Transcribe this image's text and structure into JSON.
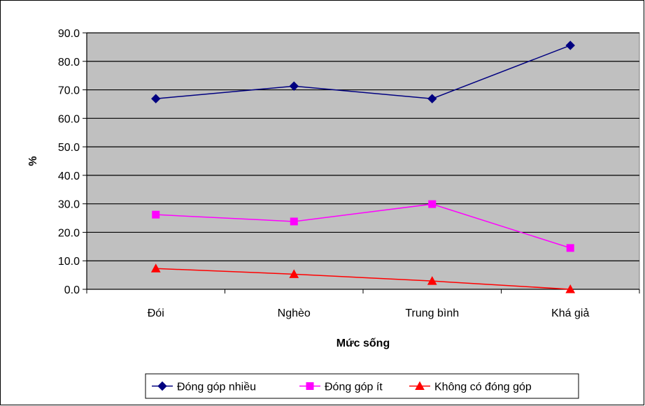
{
  "chart_data": {
    "type": "line",
    "categories": [
      "Đói",
      "Nghèo",
      "Trung bình",
      "Khá giả"
    ],
    "series": [
      {
        "name": "Đóng góp nhiều",
        "values": [
          66.9,
          71.3,
          66.9,
          85.6
        ],
        "color": "#000080",
        "marker": "diamond"
      },
      {
        "name": "Đóng góp ít",
        "values": [
          26.2,
          23.8,
          29.9,
          14.5
        ],
        "color": "#FF00FF",
        "marker": "square"
      },
      {
        "name": "Không có đóng góp",
        "values": [
          7.3,
          5.3,
          2.9,
          0.0
        ],
        "color": "#FF0000",
        "marker": "triangle"
      }
    ],
    "xlabel": "Mức sống",
    "ylabel": "%",
    "ylim": [
      0,
      90
    ],
    "yticks": [
      "0.0",
      "10.0",
      "20.0",
      "30.0",
      "40.0",
      "50.0",
      "60.0",
      "70.0",
      "80.0",
      "90.0"
    ],
    "grid": true,
    "plot_background": "#C0C0C0",
    "legend_position": "bottom"
  }
}
